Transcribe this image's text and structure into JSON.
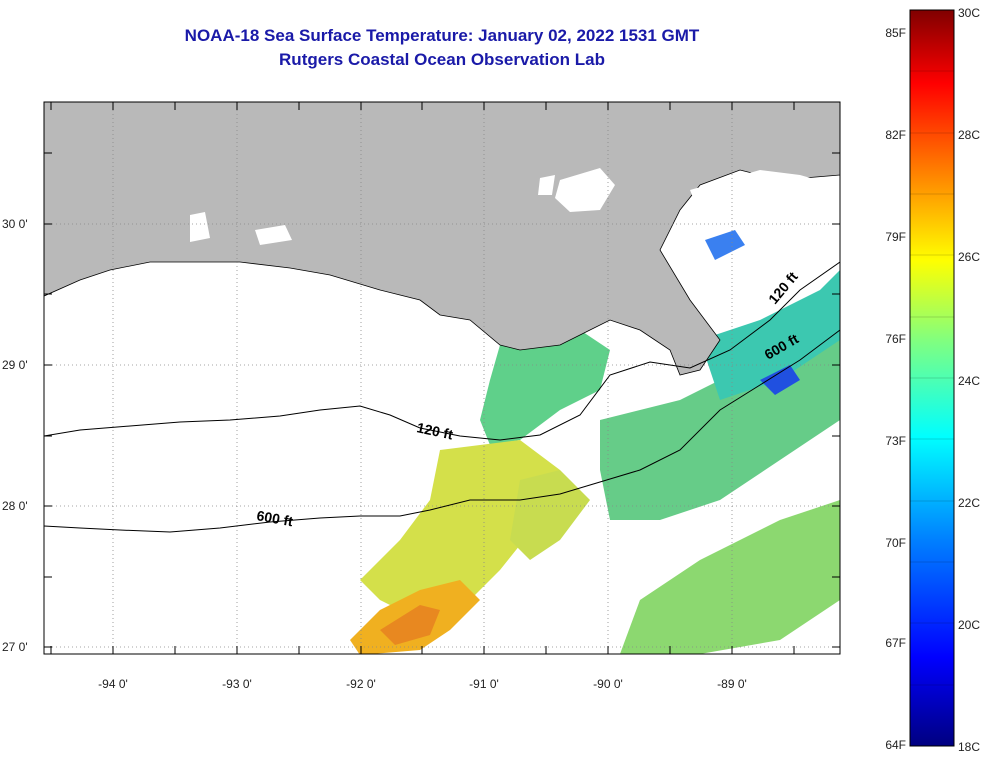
{
  "header": {
    "title": "NOAA-18 Sea Surface Temperature:  January 02, 2022 1531 GMT",
    "subtitle": "Rutgers Coastal Ocean Observation Lab"
  },
  "map": {
    "latitude_labels": [
      "30 0'",
      "29 0'",
      "28 0'",
      "27 0'"
    ],
    "longitude_labels": [
      "-94 0'",
      "-93 0'",
      "-92 0'",
      "-91 0'",
      "-90 0'",
      "-89 0'"
    ],
    "lat_range": [
      26.95,
      30.85
    ],
    "lon_range": [
      -94.55,
      -88.0
    ],
    "colors": {
      "land": "#b9b9b9",
      "no_data": "#ffffff",
      "frame": "#000000"
    },
    "contours": [
      {
        "label": "120 ft"
      },
      {
        "label": "600 ft"
      },
      {
        "label": "120 ft"
      },
      {
        "label": "600 ft"
      }
    ]
  },
  "colorbar": {
    "fahrenheit_labels": [
      "85F",
      "82F",
      "79F",
      "76F",
      "73F",
      "70F",
      "67F",
      "64F"
    ],
    "celsius_labels": [
      "30C",
      "28C",
      "26C",
      "24C",
      "22C",
      "20C",
      "18C"
    ],
    "range_c": [
      18,
      30
    ],
    "gradient": [
      "#000080",
      "#0000ff",
      "#0080ff",
      "#00ffff",
      "#80ff80",
      "#ffff00",
      "#ff8000",
      "#ff0000",
      "#800000"
    ]
  }
}
